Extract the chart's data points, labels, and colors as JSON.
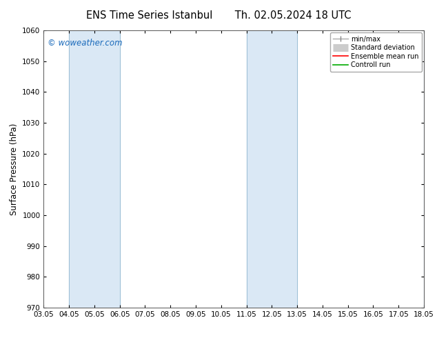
{
  "title_left": "ENS Time Series Istanbul",
  "title_right": "Th. 02.05.2024 18 UTC",
  "ylabel": "Surface Pressure (hPa)",
  "ylim": [
    970,
    1060
  ],
  "yticks": [
    970,
    980,
    990,
    1000,
    1010,
    1020,
    1030,
    1040,
    1050,
    1060
  ],
  "xlim_start": 0,
  "xlim_end": 15,
  "xtick_labels": [
    "03.05",
    "04.05",
    "05.05",
    "06.05",
    "07.05",
    "08.05",
    "09.05",
    "10.05",
    "11.05",
    "12.05",
    "13.05",
    "14.05",
    "15.05",
    "16.05",
    "17.05",
    "18.05"
  ],
  "xtick_positions": [
    0,
    1,
    2,
    3,
    4,
    5,
    6,
    7,
    8,
    9,
    10,
    11,
    12,
    13,
    14,
    15
  ],
  "shaded_bands": [
    {
      "xmin": 1,
      "xmax": 3
    },
    {
      "xmin": 8,
      "xmax": 10
    },
    {
      "xmin": 15,
      "xmax": 15.5
    }
  ],
  "band_color": "#dae8f5",
  "band_edge_color": "#9bbdd4",
  "watermark": "© woweather.com",
  "watermark_color": "#1a6abb",
  "watermark_fontsize": 8.5,
  "legend_entries": [
    {
      "label": "min/max"
    },
    {
      "label": "Standard deviation"
    },
    {
      "label": "Ensemble mean run"
    },
    {
      "label": "Controll run"
    }
  ],
  "background_color": "#ffffff",
  "title_fontsize": 10.5,
  "tick_fontsize": 7.5,
  "legend_fontsize": 7,
  "ylabel_fontsize": 8.5
}
